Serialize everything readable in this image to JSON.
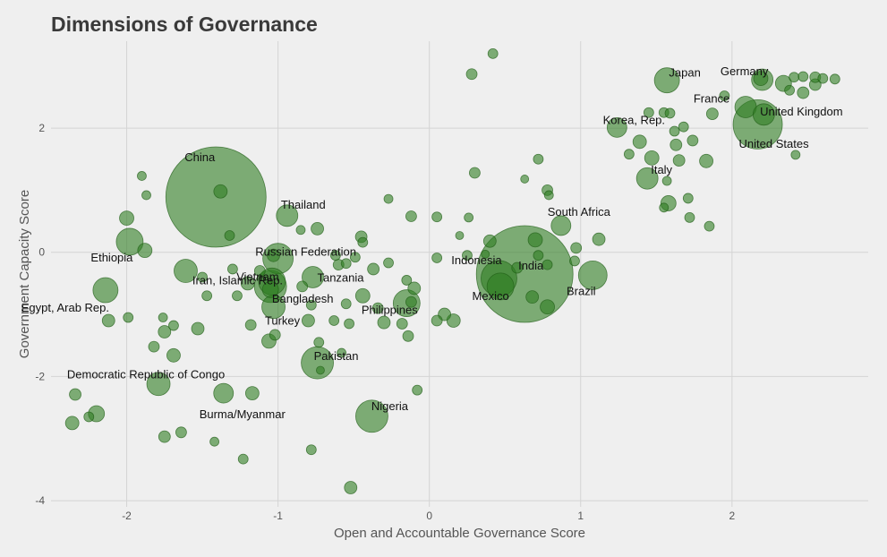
{
  "chart_data": {
    "type": "scatter",
    "title": "Dimensions of Governance",
    "xlabel": "Open and Accountable Governance Score",
    "ylabel": "Government Capacity Score",
    "xlim": [
      -2.5,
      2.9
    ],
    "ylim": [
      -4.1,
      3.4
    ],
    "xticks": [
      -2,
      -1,
      0,
      1,
      2
    ],
    "yticks": [
      -4,
      -2,
      0,
      2
    ],
    "grid": true,
    "legend": "none",
    "marker_color": "#2e7d22",
    "labeled_points": [
      {
        "name": "Japan",
        "x": 1.57,
        "y": 2.77,
        "size": 28
      },
      {
        "name": "Germany",
        "x": 2.2,
        "y": 2.78,
        "size": 24
      },
      {
        "name": "France",
        "x": 2.09,
        "y": 2.34,
        "size": 24
      },
      {
        "name": "United Kingdom",
        "x": 2.21,
        "y": 2.22,
        "size": 24
      },
      {
        "name": "United States",
        "x": 2.17,
        "y": 2.06,
        "size": 55
      },
      {
        "name": "Korea, Rep.",
        "x": 1.24,
        "y": 2.01,
        "size": 22
      },
      {
        "name": "Italy",
        "x": 1.44,
        "y": 1.19,
        "size": 24
      },
      {
        "name": "South Africa",
        "x": 0.87,
        "y": 0.43,
        "size": 22
      },
      {
        "name": "Indonesia",
        "x": 0.46,
        "y": -0.42,
        "size": 40
      },
      {
        "name": "India",
        "x": 0.63,
        "y": -0.35,
        "size": 108
      },
      {
        "name": "Brazil",
        "x": 1.08,
        "y": -0.37,
        "size": 32
      },
      {
        "name": "Mexico",
        "x": 0.47,
        "y": -0.55,
        "size": 30
      },
      {
        "name": "China",
        "x": -1.41,
        "y": 0.89,
        "size": 112
      },
      {
        "name": "Thailand",
        "x": -0.94,
        "y": 0.59,
        "size": 24
      },
      {
        "name": "Russian Federation",
        "x": -1.0,
        "y": -0.1,
        "size": 34
      },
      {
        "name": "Vietnam",
        "x": -1.04,
        "y": -0.47,
        "size": 30
      },
      {
        "name": "Tanzania",
        "x": -0.77,
        "y": -0.4,
        "size": 24
      },
      {
        "name": "Bangladesh",
        "x": -1.05,
        "y": -0.55,
        "size": 36
      },
      {
        "name": "Turkey",
        "x": -1.03,
        "y": -0.88,
        "size": 26
      },
      {
        "name": "Philippines",
        "x": -0.15,
        "y": -0.82,
        "size": 30
      },
      {
        "name": "Ethiopia",
        "x": -1.98,
        "y": 0.17,
        "size": 30
      },
      {
        "name": "Iran, Islamic Rep.",
        "x": -1.61,
        "y": -0.3,
        "size": 26
      },
      {
        "name": "Egypt, Arab Rep.",
        "x": -2.14,
        "y": -0.61,
        "size": 28
      },
      {
        "name": "Pakistan",
        "x": -0.74,
        "y": -1.78,
        "size": 36
      },
      {
        "name": "Democratic Republic of Congo",
        "x": -1.79,
        "y": -2.12,
        "size": 26
      },
      {
        "name": "Burma/Myanmar",
        "x": -1.36,
        "y": -2.27,
        "size": 22
      },
      {
        "name": "Nigeria",
        "x": -0.38,
        "y": -2.64,
        "size": 36
      }
    ],
    "other_points": [
      {
        "x": 0.42,
        "y": 3.2,
        "size": 11
      },
      {
        "x": 0.28,
        "y": 2.87,
        "size": 12
      },
      {
        "x": 0.3,
        "y": 1.28,
        "size": 12
      },
      {
        "x": 0.63,
        "y": 1.18,
        "size": 9
      },
      {
        "x": 0.72,
        "y": 1.5,
        "size": 11
      },
      {
        "x": 0.78,
        "y": 1.0,
        "size": 12
      },
      {
        "x": 0.79,
        "y": 0.92,
        "size": 10
      },
      {
        "x": 1.32,
        "y": 1.58,
        "size": 11
      },
      {
        "x": 1.39,
        "y": 1.78,
        "size": 15
      },
      {
        "x": 1.45,
        "y": 2.25,
        "size": 11
      },
      {
        "x": 1.47,
        "y": 1.52,
        "size": 16
      },
      {
        "x": 1.55,
        "y": 2.25,
        "size": 11
      },
      {
        "x": 1.59,
        "y": 2.24,
        "size": 11
      },
      {
        "x": 1.62,
        "y": 1.95,
        "size": 11
      },
      {
        "x": 1.63,
        "y": 1.73,
        "size": 13
      },
      {
        "x": 1.68,
        "y": 2.02,
        "size": 11
      },
      {
        "x": 1.65,
        "y": 1.48,
        "size": 13
      },
      {
        "x": 1.74,
        "y": 1.8,
        "size": 12
      },
      {
        "x": 1.83,
        "y": 1.47,
        "size": 15
      },
      {
        "x": 1.87,
        "y": 2.23,
        "size": 13
      },
      {
        "x": 1.58,
        "y": 0.79,
        "size": 17
      },
      {
        "x": 1.55,
        "y": 0.72,
        "size": 10
      },
      {
        "x": 1.57,
        "y": 1.15,
        "size": 10
      },
      {
        "x": 1.71,
        "y": 0.87,
        "size": 11
      },
      {
        "x": 1.72,
        "y": 0.56,
        "size": 11
      },
      {
        "x": 1.85,
        "y": 0.42,
        "size": 11
      },
      {
        "x": 1.95,
        "y": 2.52,
        "size": 11
      },
      {
        "x": 2.19,
        "y": 2.8,
        "size": 16
      },
      {
        "x": 2.34,
        "y": 2.72,
        "size": 18
      },
      {
        "x": 2.41,
        "y": 2.82,
        "size": 11
      },
      {
        "x": 2.47,
        "y": 2.83,
        "size": 11
      },
      {
        "x": 2.55,
        "y": 2.82,
        "size": 12
      },
      {
        "x": 2.6,
        "y": 2.8,
        "size": 11
      },
      {
        "x": 2.68,
        "y": 2.79,
        "size": 11
      },
      {
        "x": 2.55,
        "y": 2.7,
        "size": 13
      },
      {
        "x": 2.47,
        "y": 2.57,
        "size": 13
      },
      {
        "x": 2.38,
        "y": 2.61,
        "size": 11
      },
      {
        "x": 2.42,
        "y": 1.57,
        "size": 10
      },
      {
        "x": 1.12,
        "y": 0.21,
        "size": 14
      },
      {
        "x": 0.97,
        "y": 0.07,
        "size": 12
      },
      {
        "x": 0.96,
        "y": -0.14,
        "size": 11
      },
      {
        "x": 0.7,
        "y": 0.2,
        "size": 16
      },
      {
        "x": 0.72,
        "y": -0.05,
        "size": 11
      },
      {
        "x": 0.78,
        "y": -0.2,
        "size": 11
      },
      {
        "x": 0.68,
        "y": -0.72,
        "size": 14
      },
      {
        "x": 0.78,
        "y": -0.88,
        "size": 16
      },
      {
        "x": 0.58,
        "y": -0.25,
        "size": 12
      },
      {
        "x": 0.4,
        "y": 0.18,
        "size": 14
      },
      {
        "x": 0.37,
        "y": -0.03,
        "size": 9
      },
      {
        "x": 0.25,
        "y": -0.05,
        "size": 11
      },
      {
        "x": 0.26,
        "y": 0.56,
        "size": 10
      },
      {
        "x": 0.2,
        "y": 0.27,
        "size": 9
      },
      {
        "x": 0.05,
        "y": 0.57,
        "size": 11
      },
      {
        "x": 0.05,
        "y": -0.09,
        "size": 11
      },
      {
        "x": -0.12,
        "y": 0.58,
        "size": 12
      },
      {
        "x": -0.27,
        "y": 0.86,
        "size": 10
      },
      {
        "x": -0.27,
        "y": -0.17,
        "size": 11
      },
      {
        "x": -0.15,
        "y": -0.45,
        "size": 11
      },
      {
        "x": -0.1,
        "y": -0.58,
        "size": 14
      },
      {
        "x": -0.12,
        "y": -0.8,
        "size": 12
      },
      {
        "x": -0.08,
        "y": -2.22,
        "size": 11
      },
      {
        "x": 0.05,
        "y": -1.1,
        "size": 12
      },
      {
        "x": 0.1,
        "y": -1.0,
        "size": 14
      },
      {
        "x": 0.16,
        "y": -1.1,
        "size": 15
      },
      {
        "x": -0.18,
        "y": -1.15,
        "size": 12
      },
      {
        "x": -0.14,
        "y": -1.35,
        "size": 12
      },
      {
        "x": -0.3,
        "y": -1.13,
        "size": 14
      },
      {
        "x": -0.34,
        "y": -0.9,
        "size": 12
      },
      {
        "x": -0.37,
        "y": -0.27,
        "size": 13
      },
      {
        "x": -0.45,
        "y": 0.25,
        "size": 13
      },
      {
        "x": -0.44,
        "y": 0.16,
        "size": 11
      },
      {
        "x": -0.49,
        "y": -0.08,
        "size": 11
      },
      {
        "x": -0.55,
        "y": -0.18,
        "size": 11
      },
      {
        "x": -0.6,
        "y": -0.2,
        "size": 12
      },
      {
        "x": -0.62,
        "y": -0.05,
        "size": 11
      },
      {
        "x": -0.44,
        "y": -0.7,
        "size": 16
      },
      {
        "x": -0.55,
        "y": -0.83,
        "size": 11
      },
      {
        "x": -0.63,
        "y": -1.1,
        "size": 11
      },
      {
        "x": -0.53,
        "y": -1.15,
        "size": 11
      },
      {
        "x": -0.78,
        "y": -0.85,
        "size": 11
      },
      {
        "x": -0.8,
        "y": -1.1,
        "size": 14
      },
      {
        "x": -0.84,
        "y": -0.55,
        "size": 12
      },
      {
        "x": -0.73,
        "y": -1.45,
        "size": 11
      },
      {
        "x": -0.72,
        "y": -1.9,
        "size": 9
      },
      {
        "x": -0.78,
        "y": -3.18,
        "size": 11
      },
      {
        "x": -0.52,
        "y": -3.79,
        "size": 14
      },
      {
        "x": -0.58,
        "y": -1.62,
        "size": 10
      },
      {
        "x": -0.74,
        "y": 0.38,
        "size": 14
      },
      {
        "x": -0.85,
        "y": 0.36,
        "size": 10
      },
      {
        "x": -1.03,
        "y": -0.05,
        "size": 14
      },
      {
        "x": -1.12,
        "y": -0.3,
        "size": 12
      },
      {
        "x": -1.2,
        "y": -0.5,
        "size": 15
      },
      {
        "x": -1.05,
        "y": -0.6,
        "size": 18
      },
      {
        "x": -1.02,
        "y": -1.33,
        "size": 12
      },
      {
        "x": -1.06,
        "y": -1.43,
        "size": 16
      },
      {
        "x": -1.18,
        "y": -1.17,
        "size": 12
      },
      {
        "x": -1.17,
        "y": -2.27,
        "size": 15
      },
      {
        "x": -1.23,
        "y": -3.33,
        "size": 11
      },
      {
        "x": -1.27,
        "y": -0.7,
        "size": 11
      },
      {
        "x": -1.3,
        "y": -0.27,
        "size": 11
      },
      {
        "x": -1.32,
        "y": 0.27,
        "size": 11
      },
      {
        "x": -1.38,
        "y": 0.98,
        "size": 15
      },
      {
        "x": -1.5,
        "y": -0.4,
        "size": 11
      },
      {
        "x": -1.47,
        "y": -0.7,
        "size": 11
      },
      {
        "x": -1.53,
        "y": -1.23,
        "size": 14
      },
      {
        "x": -1.42,
        "y": -3.05,
        "size": 10
      },
      {
        "x": -1.64,
        "y": -2.9,
        "size": 12
      },
      {
        "x": -1.69,
        "y": -1.18,
        "size": 11
      },
      {
        "x": -1.69,
        "y": -1.66,
        "size": 15
      },
      {
        "x": -1.75,
        "y": -1.28,
        "size": 14
      },
      {
        "x": -1.76,
        "y": -1.05,
        "size": 10
      },
      {
        "x": -1.75,
        "y": -2.97,
        "size": 13
      },
      {
        "x": -1.82,
        "y": -1.52,
        "size": 12
      },
      {
        "x": -1.87,
        "y": 0.92,
        "size": 10
      },
      {
        "x": -1.9,
        "y": 1.23,
        "size": 10
      },
      {
        "x": -1.88,
        "y": 0.03,
        "size": 16
      },
      {
        "x": -2.0,
        "y": 0.55,
        "size": 16
      },
      {
        "x": -1.99,
        "y": -1.05,
        "size": 11
      },
      {
        "x": -2.12,
        "y": -1.1,
        "size": 14
      },
      {
        "x": -2.2,
        "y": -2.6,
        "size": 18
      },
      {
        "x": -2.25,
        "y": -2.65,
        "size": 11
      },
      {
        "x": -2.34,
        "y": -2.29,
        "size": 13
      },
      {
        "x": -2.36,
        "y": -2.75,
        "size": 15
      }
    ]
  }
}
